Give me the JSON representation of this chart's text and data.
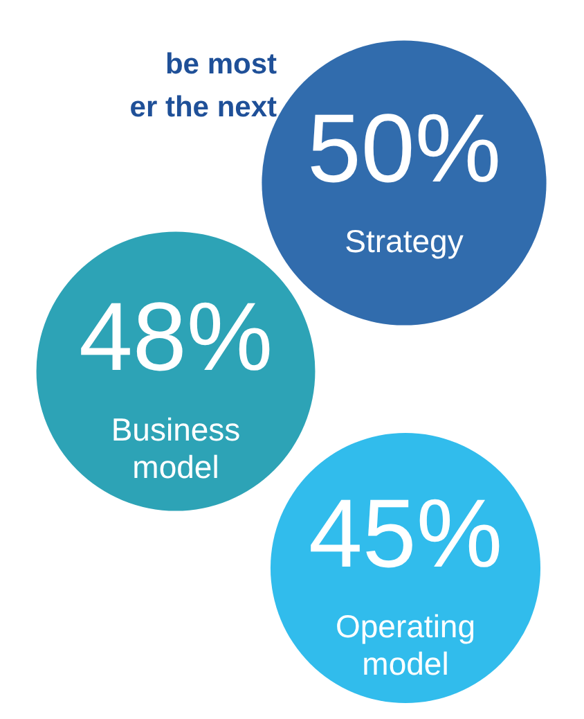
{
  "chart_data": {
    "type": "other",
    "title": "be most",
    "subtitle": "er the next",
    "categories": [
      "Strategy",
      "Business model",
      "Operating model"
    ],
    "values": [
      50,
      48,
      45
    ],
    "value_labels": [
      "50%",
      "48%",
      "45%"
    ],
    "colors": [
      "#1f5fa6",
      "#1b9bb0",
      "#1fb6ea"
    ]
  }
}
